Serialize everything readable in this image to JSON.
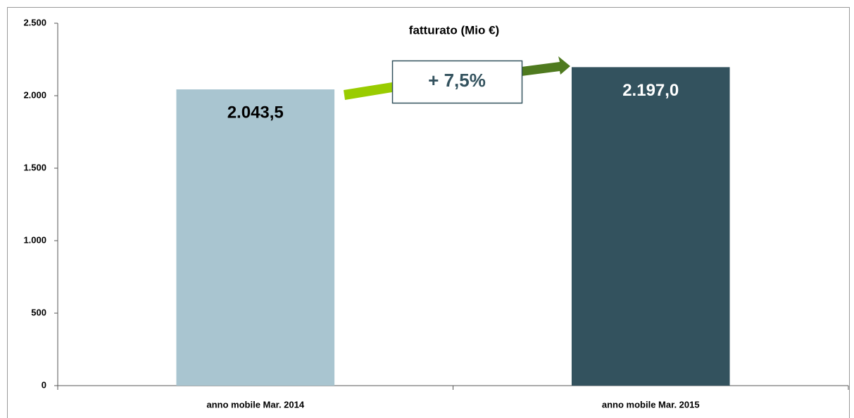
{
  "chart_data": {
    "type": "bar",
    "title": "fatturato (Mio €)",
    "categories": [
      "anno mobile Mar. 2014",
      "anno mobile Mar. 2015"
    ],
    "values": [
      2043.5,
      2197.0
    ],
    "value_labels": [
      "2.043,5",
      "2.197,0"
    ],
    "colors": [
      "#a9c5d0",
      "#33525e"
    ],
    "annotation": "+ 7,5%",
    "ylim": [
      0,
      2500
    ],
    "yticks": [
      0,
      500,
      {
        "value": 1000,
        "label": "1.000"
      },
      {
        "value": 1500,
        "label": "1.500"
      },
      {
        "value": 2000,
        "label": "2.000"
      },
      {
        "value": 2500,
        "label": "2.500"
      }
    ],
    "grid": false
  }
}
